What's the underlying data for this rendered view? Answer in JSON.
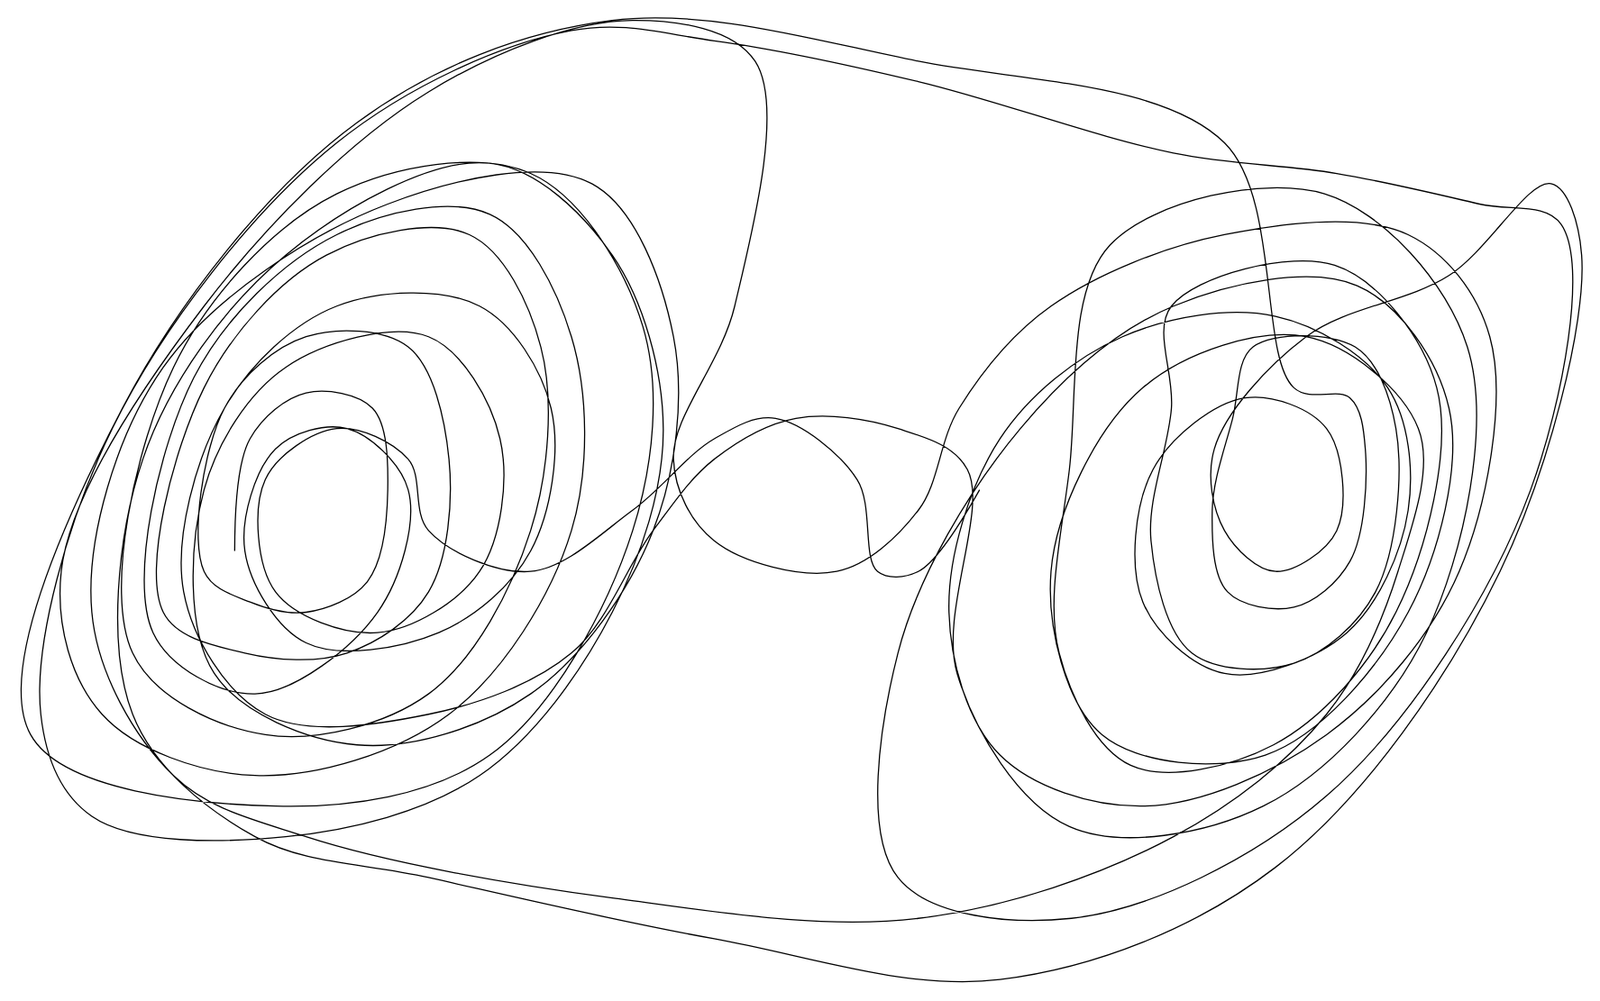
{
  "chart_data": {
    "type": "line",
    "color": "#000000",
    "line_style": "solid",
    "grid": false,
    "tick_labels": false,
    "xlim": [
      0,
      1568
    ],
    "ylim": [
      981,
      0
    ],
    "x": [
      230,
      245,
      300,
      365,
      380,
      360,
      300,
      245,
      200,
      220,
      300,
      400,
      440,
      420,
      340,
      240,
      160,
      200,
      320,
      460,
      530,
      520,
      420,
      260,
      130,
      170,
      330,
      520,
      630,
      620,
      480,
      270,
      30,
      120,
      350,
      600,
      900,
      1200,
      1268,
      1323,
      1338,
      1323,
      1268,
      1203,
      1188,
      1208,
      1228,
      1328,
      1368,
      1348,
      1268,
      1168,
      1128,
      1148,
      1148,
      1308,
      1408,
      1368,
      1248,
      1108,
      1038,
      1048,
      1088,
      1298,
      1438,
      1398,
      1238,
      1048,
      938,
      948,
      880,
      780,
      700,
      640,
      560,
      420,
      260,
      180,
      220,
      330,
      470,
      540,
      520,
      430,
      300,
      240,
      270,
      340,
      400,
      370,
      250,
      150,
      190,
      330,
      480,
      560,
      560,
      440,
      250,
      100,
      60,
      200,
      420,
      620,
      740,
      720,
      660,
      700,
      820,
      900,
      940,
      1030,
      1200,
      1380,
      1460,
      1430,
      1300,
      1120,
      980,
      930,
      980,
      1100,
      1250,
      1360,
      1380,
      1320,
      1200,
      1120,
      1130,
      1220,
      1300,
      1310,
      1250,
      1200,
      1190,
      1280,
      1420,
      1520,
      1550,
      1470,
      1250,
      980,
      700,
      420,
      250,
      130,
      140,
      280,
      480,
      600,
      650,
      600,
      470,
      280,
      90,
      40,
      110,
      330,
      560,
      700,
      900,
      1150,
      1310,
      1450,
      1530,
      1500,
      1300,
      1050,
      880,
      880,
      1000,
      1150,
      1330,
      1420,
      1380,
      1240,
      1080,
      1030,
      1120,
      1280,
      1390,
      1370,
      1300,
      1150,
      900,
      600,
      300,
      170,
      90,
      160,
      380,
      580,
      660,
      640,
      520,
      350,
      210,
      200,
      280,
      420,
      490,
      470,
      370,
      270,
      260,
      330,
      400,
      420,
      520,
      620,
      700,
      760,
      840,
      860,
      900,
      960
    ],
    "y": [
      540,
      430,
      385,
      400,
      480,
      570,
      600,
      590,
      560,
      400,
      330,
      340,
      450,
      580,
      640,
      640,
      600,
      380,
      250,
      230,
      340,
      520,
      680,
      720,
      640,
      360,
      190,
      170,
      320,
      520,
      740,
      790,
      720,
      400,
      120,
      20,
      60,
      140,
      380,
      390,
      440,
      550,
      595,
      580,
      500,
      410,
      340,
      340,
      420,
      580,
      650,
      640,
      530,
      400,
      300,
      260,
      380,
      600,
      730,
      750,
      640,
      460,
      240,
      190,
      340,
      620,
      790,
      810,
      660,
      460,
      420,
      410,
      450,
      520,
      640,
      700,
      700,
      580,
      400,
      300,
      300,
      400,
      540,
      620,
      630,
      540,
      440,
      420,
      480,
      600,
      680,
      620,
      370,
      230,
      210,
      330,
      520,
      700,
      760,
      700,
      560,
      300,
      90,
      20,
      60,
      300,
      450,
      530,
      560,
      500,
      400,
      300,
      230,
      230,
      330,
      560,
      720,
      790,
      740,
      600,
      430,
      330,
      310,
      380,
      500,
      620,
      660,
      590,
      460,
      390,
      420,
      520,
      560,
      520,
      440,
      330,
      270,
      180,
      250,
      560,
      850,
      960,
      920,
      860,
      820,
      700,
      450,
      250,
      160,
      250,
      420,
      600,
      760,
      820,
      800,
      700,
      420,
      140,
      30,
      40,
      80,
      150,
      170,
      200,
      220,
      480,
      780,
      900,
      860,
      640,
      420,
      300,
      280,
      400,
      600,
      740,
      720,
      560,
      380,
      330,
      420,
      560,
      700,
      820,
      900,
      880,
      820,
      760,
      600,
      360,
      200,
      180,
      330,
      520,
      680,
      730,
      660,
      480,
      360,
      330,
      430,
      560,
      620,
      580,
      470,
      420,
      450,
      520,
      560,
      500,
      430,
      410,
      470,
      560,
      560,
      480
    ]
  }
}
